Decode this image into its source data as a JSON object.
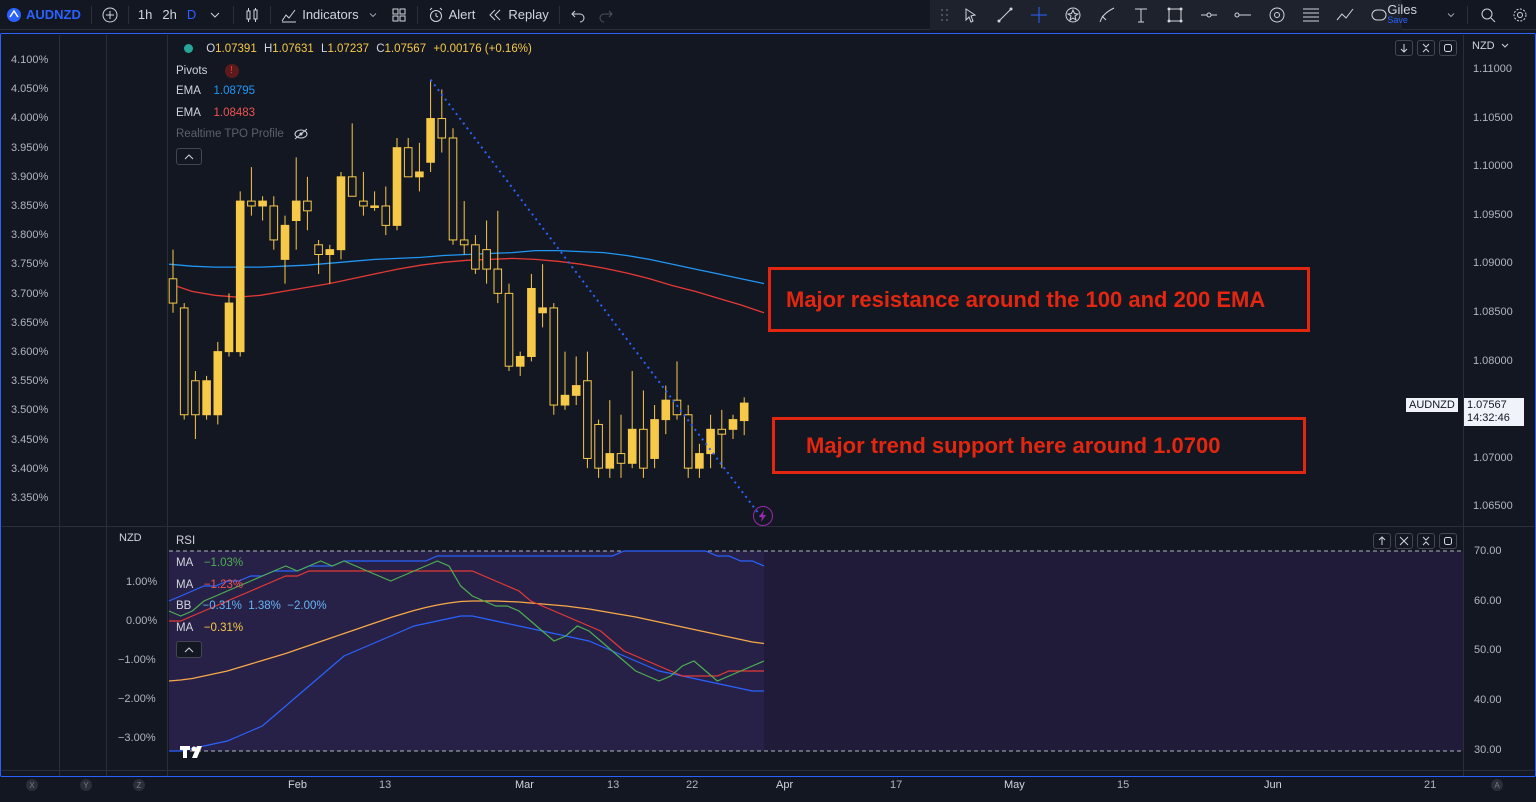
{
  "toolbar": {
    "symbol": "AUDNZD",
    "timeframes": [
      "1h",
      "2h",
      "D"
    ],
    "active_timeframe": "D",
    "indicators_label": "Indicators",
    "alert_label": "Alert",
    "replay_label": "Replay",
    "user_name": "Giles",
    "save_label": "Save"
  },
  "legend": {
    "ohlc": {
      "o_label": "O",
      "o": "1.07391",
      "h_label": "H",
      "h": "1.07631",
      "l_label": "L",
      "l": "1.07237",
      "c_label": "C",
      "c": "1.07567",
      "change": "+0.00176 (+0.16%)"
    },
    "pivots_label": "Pivots",
    "ema1_label": "EMA",
    "ema1_value": "1.08795",
    "ema2_label": "EMA",
    "ema2_value": "1.08483",
    "tpo_label": "Realtime TPO Profile"
  },
  "currency_label": "NZD",
  "lower_left_label": "NZD",
  "rsi": {
    "title": "RSI",
    "ma1_label": "MA",
    "ma1_value": "−1.03%",
    "ma2_label": "MA",
    "ma2_value": "−1.23%",
    "bb_label": "BB",
    "bb_values": "−0.31%  1.38%  −2.00%",
    "ma3_label": "MA",
    "ma3_value": "−0.31%"
  },
  "price_scale_right": [
    "1.11000",
    "1.10500",
    "1.10000",
    "1.09500",
    "1.09000",
    "1.08500",
    "1.08000",
    "1.07500",
    "1.07000",
    "1.06500"
  ],
  "pct_scale_left": [
    "4.100%",
    "4.050%",
    "4.000%",
    "3.950%",
    "3.900%",
    "3.850%",
    "3.800%",
    "3.750%",
    "3.700%",
    "3.650%",
    "3.600%",
    "3.550%",
    "3.500%",
    "3.450%",
    "3.400%",
    "3.350%"
  ],
  "rsi_scale_right": [
    "70.00",
    "60.00",
    "50.00",
    "40.00",
    "30.00"
  ],
  "rsi_scale_left": [
    "1.00%",
    "0.00%",
    "−1.00%",
    "−2.00%",
    "−3.00%"
  ],
  "time_labels": [
    "Feb",
    "13",
    "Mar",
    "13",
    "22",
    "Apr",
    "17",
    "May",
    "15",
    "Jun",
    "21"
  ],
  "bottom_letters": [
    "X",
    "Y",
    "Z",
    "A"
  ],
  "last_price": {
    "symbol": "AUDNZD",
    "price": "1.07567",
    "countdown": "14:32:46"
  },
  "annotations": {
    "resistance": "Major resistance around the 100 and 200 EMA",
    "support": "Major trend support here around 1.0700"
  },
  "colors": {
    "up": "#f7c948",
    "accent": "#2962ff",
    "ema_fast": "#2196f3",
    "ema_slow": "#e53935",
    "annotation": "#e3260f",
    "rsi_bg": "#2a1f4a"
  },
  "chart_data": {
    "type": "candlestick",
    "symbol": "AUDNZD",
    "interval": "D",
    "ylim": [
      1.063,
      1.113
    ],
    "candles": [
      {
        "o": 1.0885,
        "h": 1.0915,
        "l": 1.085,
        "c": 1.086
      },
      {
        "o": 1.0855,
        "h": 1.086,
        "l": 1.074,
        "c": 1.0745
      },
      {
        "o": 1.078,
        "h": 1.079,
        "l": 1.072,
        "c": 1.0745
      },
      {
        "o": 1.0745,
        "h": 1.0785,
        "l": 1.074,
        "c": 1.078
      },
      {
        "o": 1.0745,
        "h": 1.082,
        "l": 1.0735,
        "c": 1.081
      },
      {
        "o": 1.081,
        "h": 1.087,
        "l": 1.0805,
        "c": 1.086
      },
      {
        "o": 1.081,
        "h": 1.0975,
        "l": 1.0805,
        "c": 1.0965
      },
      {
        "o": 1.0965,
        "h": 1.1,
        "l": 1.095,
        "c": 1.096
      },
      {
        "o": 1.096,
        "h": 1.097,
        "l": 1.0945,
        "c": 1.0965
      },
      {
        "o": 1.096,
        "h": 1.097,
        "l": 1.0915,
        "c": 1.0925
      },
      {
        "o": 1.0905,
        "h": 1.095,
        "l": 1.088,
        "c": 1.094
      },
      {
        "o": 1.0945,
        "h": 1.101,
        "l": 1.0915,
        "c": 1.0965
      },
      {
        "o": 1.0965,
        "h": 1.099,
        "l": 1.0935,
        "c": 1.0955
      },
      {
        "o": 1.092,
        "h": 1.0925,
        "l": 1.089,
        "c": 1.091
      },
      {
        "o": 1.091,
        "h": 1.092,
        "l": 1.088,
        "c": 1.0915
      },
      {
        "o": 1.0915,
        "h": 1.0995,
        "l": 1.0905,
        "c": 1.099
      },
      {
        "o": 1.099,
        "h": 1.1045,
        "l": 1.097,
        "c": 1.097
      },
      {
        "o": 1.0965,
        "h": 1.0995,
        "l": 1.095,
        "c": 1.096
      },
      {
        "o": 1.096,
        "h": 1.0975,
        "l": 1.0955,
        "c": 1.096
      },
      {
        "o": 1.096,
        "h": 1.098,
        "l": 1.093,
        "c": 1.094
      },
      {
        "o": 1.094,
        "h": 1.103,
        "l": 1.0935,
        "c": 1.102
      },
      {
        "o": 1.102,
        "h": 1.103,
        "l": 1.099,
        "c": 1.099
      },
      {
        "o": 1.099,
        "h": 1.1025,
        "l": 1.0975,
        "c": 1.0995
      },
      {
        "o": 1.1005,
        "h": 1.109,
        "l": 1.0995,
        "c": 1.105
      },
      {
        "o": 1.105,
        "h": 1.108,
        "l": 1.1015,
        "c": 1.103
      },
      {
        "o": 1.103,
        "h": 1.104,
        "l": 1.092,
        "c": 1.0925
      },
      {
        "o": 1.0925,
        "h": 1.0965,
        "l": 1.091,
        "c": 1.092
      },
      {
        "o": 1.092,
        "h": 1.093,
        "l": 1.089,
        "c": 1.0895
      },
      {
        "o": 1.0915,
        "h": 1.0945,
        "l": 1.088,
        "c": 1.0895
      },
      {
        "o": 1.0895,
        "h": 1.0955,
        "l": 1.086,
        "c": 1.087
      },
      {
        "o": 1.087,
        "h": 1.088,
        "l": 1.079,
        "c": 1.0795
      },
      {
        "o": 1.0795,
        "h": 1.081,
        "l": 1.0785,
        "c": 1.0805
      },
      {
        "o": 1.0805,
        "h": 1.089,
        "l": 1.08,
        "c": 1.0875
      },
      {
        "o": 1.085,
        "h": 1.09,
        "l": 1.0835,
        "c": 1.0855
      },
      {
        "o": 1.0855,
        "h": 1.086,
        "l": 1.0745,
        "c": 1.0755
      },
      {
        "o": 1.0755,
        "h": 1.081,
        "l": 1.075,
        "c": 1.0765
      },
      {
        "o": 1.0765,
        "h": 1.0805,
        "l": 1.0755,
        "c": 1.0775
      },
      {
        "o": 1.078,
        "h": 1.081,
        "l": 1.069,
        "c": 1.07
      },
      {
        "o": 1.0735,
        "h": 1.074,
        "l": 1.068,
        "c": 1.069
      },
      {
        "o": 1.069,
        "h": 1.076,
        "l": 1.068,
        "c": 1.0705
      },
      {
        "o": 1.0705,
        "h": 1.0745,
        "l": 1.068,
        "c": 1.0695
      },
      {
        "o": 1.0695,
        "h": 1.079,
        "l": 1.069,
        "c": 1.073
      },
      {
        "o": 1.073,
        "h": 1.077,
        "l": 1.068,
        "c": 1.069
      },
      {
        "o": 1.07,
        "h": 1.0755,
        "l": 1.069,
        "c": 1.074
      },
      {
        "o": 1.074,
        "h": 1.0775,
        "l": 1.0725,
        "c": 1.076
      },
      {
        "o": 1.076,
        "h": 1.08,
        "l": 1.074,
        "c": 1.0745
      },
      {
        "o": 1.0745,
        "h": 1.0755,
        "l": 1.068,
        "c": 1.069
      },
      {
        "o": 1.069,
        "h": 1.0715,
        "l": 1.068,
        "c": 1.0705
      },
      {
        "o": 1.0705,
        "h": 1.0745,
        "l": 1.069,
        "c": 1.073
      },
      {
        "o": 1.073,
        "h": 1.075,
        "l": 1.069,
        "c": 1.0725
      },
      {
        "o": 1.073,
        "h": 1.0745,
        "l": 1.072,
        "c": 1.074
      },
      {
        "o": 1.0739,
        "h": 1.0763,
        "l": 1.0724,
        "c": 1.0757
      }
    ],
    "ema_fast": [
      1.09,
      1.0898,
      1.0897,
      1.0897,
      1.0897,
      1.0898,
      1.0899,
      1.0901,
      1.0903,
      1.0905,
      1.0906,
      1.0907,
      1.0909,
      1.091,
      1.0911,
      1.0912,
      1.0914,
      1.0914,
      1.0913,
      1.0912,
      1.0909,
      1.0905,
      1.09,
      1.0895,
      1.089,
      1.0885,
      1.088
    ],
    "ema_slow": [
      1.088,
      1.0872,
      1.0868,
      1.0866,
      1.0868,
      1.0872,
      1.0876,
      1.088,
      1.0885,
      1.089,
      1.0895,
      1.0899,
      1.0902,
      1.0904,
      1.0905,
      1.0906,
      1.0905,
      1.0903,
      1.09,
      1.0896,
      1.0891,
      1.0885,
      1.0878,
      1.0872,
      1.0865,
      1.0858,
      1.085
    ],
    "trendline": {
      "from": {
        "index": 23,
        "price": 1.109
      },
      "to": {
        "index": 52.5,
        "price": 1.064
      }
    },
    "rsi_pane": {
      "ylim": [
        30,
        70
      ],
      "ma_green": [
        58,
        57,
        58,
        60,
        61,
        62,
        63,
        64,
        65,
        66,
        67,
        66,
        67,
        68,
        67,
        68,
        67,
        66,
        65,
        64,
        65,
        66,
        67,
        68,
        67,
        63,
        61,
        60,
        59,
        59,
        58,
        56,
        54,
        52,
        53,
        55,
        54,
        52,
        50,
        48,
        46,
        45,
        44,
        45,
        47,
        48,
        46,
        44,
        45,
        46,
        47,
        48
      ],
      "ma_red": [
        56,
        56,
        57,
        58,
        59,
        60,
        61,
        62,
        63,
        64,
        65,
        65,
        66,
        66,
        66,
        66,
        66,
        66,
        66,
        66,
        66,
        66,
        66,
        66,
        66,
        66,
        66,
        65,
        64,
        63,
        62,
        60,
        59,
        58,
        57,
        56,
        55,
        54,
        52,
        50,
        49,
        48,
        47,
        46,
        45,
        45,
        45,
        45,
        46,
        46,
        46,
        46
      ],
      "bb_upper": [
        60,
        61,
        62,
        63,
        63,
        64,
        64,
        65,
        65,
        66,
        66,
        66,
        67,
        67,
        67,
        68,
        68,
        68,
        68,
        68,
        68,
        68,
        68,
        69,
        69,
        69,
        69,
        69,
        69,
        69,
        69,
        69,
        69,
        69,
        69,
        69,
        69,
        69,
        69,
        70,
        70,
        70,
        70,
        70,
        70,
        70,
        70,
        69,
        69,
        68,
        68,
        67
      ],
      "bb_lower": [
        30,
        30,
        30.5,
        31,
        31.5,
        32,
        33,
        34,
        35,
        37,
        39,
        41,
        43,
        45,
        47,
        49,
        50,
        51,
        52,
        53,
        54,
        55,
        55.5,
        56,
        56.5,
        57,
        57,
        56.5,
        56,
        55.5,
        55,
        54.5,
        54,
        53.5,
        53,
        52.5,
        52,
        51,
        50,
        49,
        48,
        47,
        46,
        45.5,
        45,
        44.5,
        44,
        43.5,
        43,
        42.5,
        42,
        42
      ],
      "ma_orange": [
        44,
        44.2,
        44.5,
        45,
        45.5,
        46,
        46.7,
        47.4,
        48.1,
        48.8,
        49.5,
        50.3,
        51.1,
        51.9,
        52.7,
        53.5,
        54.3,
        55.1,
        55.9,
        56.7,
        57.4,
        58.1,
        58.7,
        59.2,
        59.6,
        59.9,
        60,
        60,
        60,
        59.9,
        59.8,
        59.6,
        59.4,
        59.2,
        59,
        58.7,
        58.4,
        58,
        57.6,
        57.2,
        56.8,
        56.3,
        55.8,
        55.3,
        54.8,
        54.3,
        53.8,
        53.3,
        52.8,
        52.3,
        51.8,
        51.5
      ]
    }
  }
}
